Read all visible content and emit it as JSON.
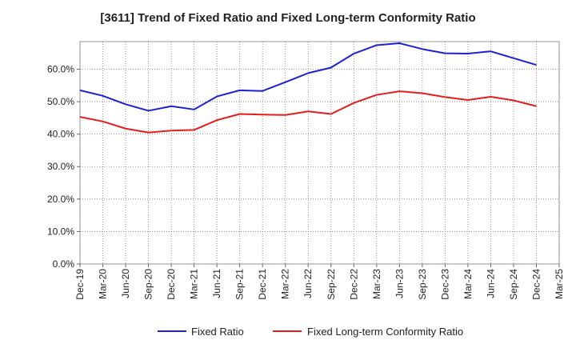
{
  "chart_data": {
    "type": "line",
    "title": "[3611]  Trend of Fixed Ratio and Fixed Long-term Conformity Ratio",
    "xlabel": "",
    "ylabel": "",
    "categories": [
      "Dec-19",
      "Mar-20",
      "Jun-20",
      "Sep-20",
      "Dec-20",
      "Mar-21",
      "Jun-21",
      "Sep-21",
      "Dec-21",
      "Mar-22",
      "Jun-22",
      "Sep-22",
      "Dec-22",
      "Mar-23",
      "Jun-23",
      "Sep-23",
      "Dec-23",
      "Mar-24",
      "Jun-24",
      "Sep-24",
      "Dec-24",
      "Mar-25"
    ],
    "ylim": [
      0,
      68.5
    ],
    "yticks": [
      0,
      10,
      20,
      30,
      40,
      50,
      60
    ],
    "ytick_labels": [
      "0.0%",
      "10.0%",
      "20.0%",
      "30.0%",
      "40.0%",
      "50.0%",
      "60.0%"
    ],
    "grid": true,
    "legend_position": "bottom",
    "series": [
      {
        "name": "Fixed Ratio",
        "color": "#1f1fd6",
        "values": [
          53.5,
          51.8,
          49.2,
          47.2,
          48.6,
          47.6,
          51.6,
          53.5,
          53.3,
          56.0,
          58.8,
          60.5,
          64.8,
          67.4,
          68.0,
          66.2,
          64.9,
          64.8,
          65.5,
          63.4,
          61.3,
          null
        ]
      },
      {
        "name": "Fixed Long-term Conformity Ratio",
        "color": "#e61c1c",
        "values": [
          45.3,
          43.9,
          41.7,
          40.5,
          41.1,
          41.3,
          44.3,
          46.2,
          46.0,
          45.9,
          47.0,
          46.2,
          49.6,
          52.1,
          53.2,
          52.6,
          51.4,
          50.5,
          51.5,
          50.4,
          48.6,
          null
        ]
      }
    ]
  }
}
